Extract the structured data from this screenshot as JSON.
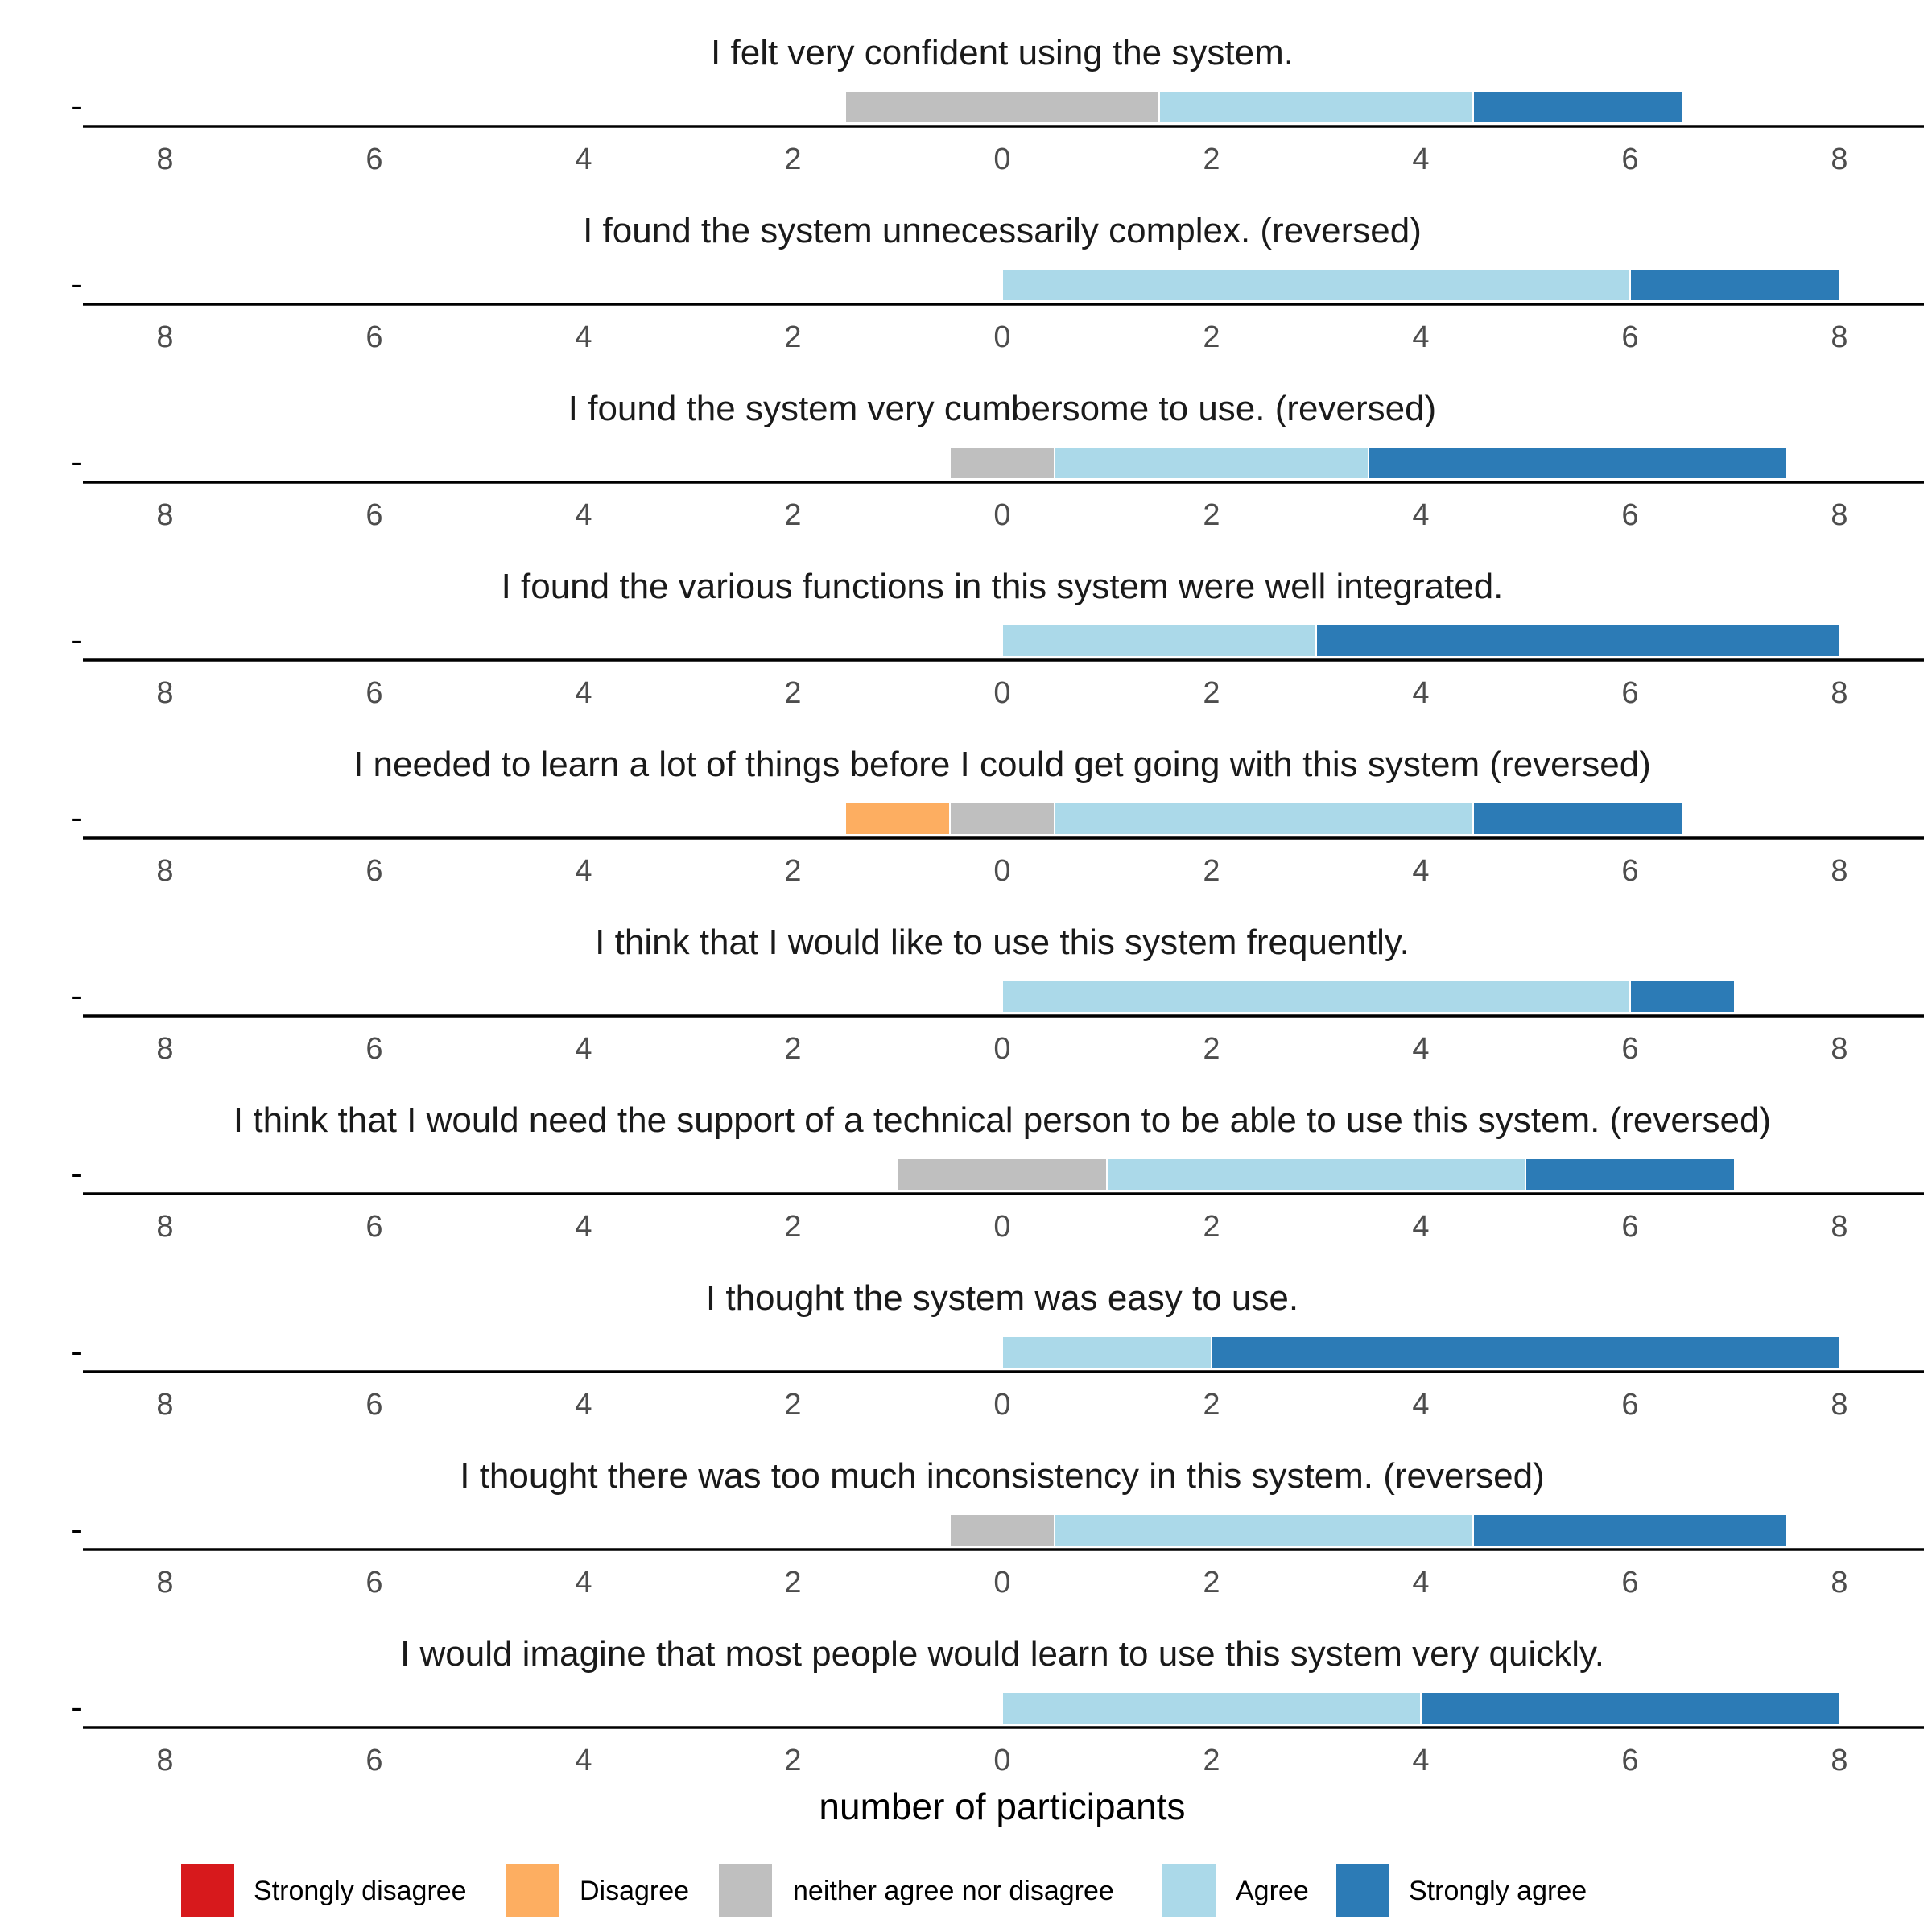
{
  "chart_data": {
    "type": "bar",
    "orientation": "horizontal",
    "layout": "diverging-stacked",
    "xlabel": "number of participants",
    "x_ticks": [
      "8",
      "6",
      "4",
      "2",
      "0",
      "2",
      "4",
      "6",
      "8"
    ],
    "xlim": [
      -8,
      8
    ],
    "y_tick_label": "-",
    "grid": false,
    "legend_position": "bottom",
    "levels": [
      "Strongly disagree",
      "Disagree",
      "neither agree nor disagree",
      "Agree",
      "Strongly agree"
    ],
    "colors": {
      "Strongly disagree": "#d7191c",
      "Disagree": "#fdae61",
      "neither agree nor disagree": "#bfbfbf",
      "Agree": "#abd9e9",
      "Strongly agree": "#2c7bb6"
    },
    "panels": [
      {
        "title": "I felt very confident using the system.",
        "counts": {
          "Strongly disagree": 0,
          "Disagree": 0,
          "neither agree nor disagree": 3,
          "Agree": 3,
          "Strongly agree": 2
        }
      },
      {
        "title": "I found the system unnecessarily complex. (reversed)",
        "counts": {
          "Strongly disagree": 0,
          "Disagree": 0,
          "neither agree nor disagree": 0,
          "Agree": 6,
          "Strongly agree": 2
        }
      },
      {
        "title": "I found the system very cumbersome to use. (reversed)",
        "counts": {
          "Strongly disagree": 0,
          "Disagree": 0,
          "neither agree nor disagree": 1,
          "Agree": 3,
          "Strongly agree": 4
        }
      },
      {
        "title": "I found the various functions in this system were well integrated.",
        "counts": {
          "Strongly disagree": 0,
          "Disagree": 0,
          "neither agree nor disagree": 0,
          "Agree": 3,
          "Strongly agree": 5
        }
      },
      {
        "title": "I needed to learn a lot of things before I could get going with this system (reversed)",
        "counts": {
          "Strongly disagree": 0,
          "Disagree": 1,
          "neither agree nor disagree": 1,
          "Agree": 4,
          "Strongly agree": 2
        }
      },
      {
        "title": "I think that I would like to use this system frequently.",
        "counts": {
          "Strongly disagree": 0,
          "Disagree": 0,
          "neither agree nor disagree": 0,
          "Agree": 6,
          "Strongly agree": 1
        }
      },
      {
        "title": "I think that I would need the support of a technical person to be able to use this system. (reversed)",
        "counts": {
          "Strongly disagree": 0,
          "Disagree": 0,
          "neither agree nor disagree": 2,
          "Agree": 4,
          "Strongly agree": 2
        }
      },
      {
        "title": "I thought the system was easy to use.",
        "counts": {
          "Strongly disagree": 0,
          "Disagree": 0,
          "neither agree nor disagree": 0,
          "Agree": 2,
          "Strongly agree": 6
        }
      },
      {
        "title": "I thought there was too much inconsistency in this system. (reversed)",
        "counts": {
          "Strongly disagree": 0,
          "Disagree": 0,
          "neither agree nor disagree": 1,
          "Agree": 4,
          "Strongly agree": 3
        }
      },
      {
        "title": "I would imagine that most people would learn to use this system very quickly.",
        "counts": {
          "Strongly disagree": 0,
          "Disagree": 0,
          "neither agree nor disagree": 0,
          "Agree": 4,
          "Strongly agree": 4
        }
      }
    ]
  }
}
